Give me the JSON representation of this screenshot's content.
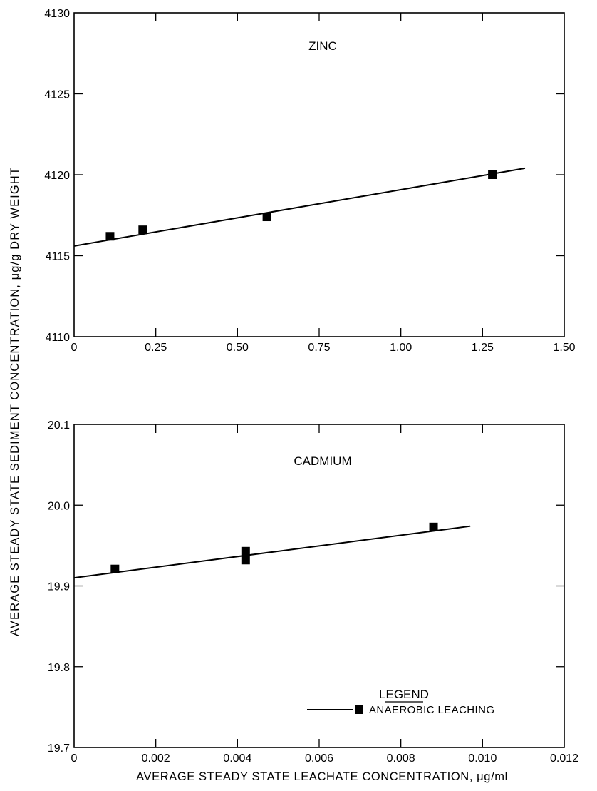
{
  "chart_data": [
    {
      "type": "scatter",
      "title": "ZINC",
      "x_ticks": [
        "0",
        "0.25",
        "0.50",
        "0.75",
        "1.00",
        "1.25",
        "1.50"
      ],
      "y_ticks": [
        "4110",
        "4115",
        "4120",
        "4125",
        "4130"
      ],
      "xlim": [
        0,
        1.5
      ],
      "ylim": [
        4110,
        4130
      ],
      "grid": false,
      "series": [
        {
          "points": [
            [
              0.11,
              4116.2
            ],
            [
              0.21,
              4116.6
            ],
            [
              0.59,
              4117.4
            ],
            [
              1.28,
              4120.0
            ]
          ]
        }
      ],
      "fit_line": {
        "x": [
          0,
          1.38
        ],
        "y": [
          4115.6,
          4120.4
        ]
      }
    },
    {
      "type": "scatter",
      "title": "CADMIUM",
      "x_ticks": [
        "0",
        "0.002",
        "0.004",
        "0.006",
        "0.008",
        "0.010",
        "0.012"
      ],
      "y_ticks": [
        "19.7",
        "19.8",
        "19.9",
        "20.0",
        "20.1"
      ],
      "xlim": [
        0,
        0.012
      ],
      "ylim": [
        19.7,
        20.1
      ],
      "grid": false,
      "legend_position": "bottom-right",
      "series": [
        {
          "name": "ANAEROBIC LEACHING",
          "points": [
            [
              0.001,
              19.921
            ],
            [
              0.0042,
              19.943
            ],
            [
              0.0042,
              19.932
            ],
            [
              0.0088,
              19.973
            ]
          ]
        }
      ],
      "fit_line": {
        "x": [
          0,
          0.0097
        ],
        "y": [
          19.91,
          19.974
        ]
      }
    }
  ],
  "labels": {
    "ylabel": "AVERAGE STEADY STATE SEDIMENT CONCENTRATION, μg/g DRY WEIGHT",
    "xlabel": "AVERAGE STEADY STATE LEACHATE CONCENTRATION, μg/ml",
    "legend_title": "LEGEND",
    "legend_entry": "ANAEROBIC LEACHING"
  },
  "colors": {
    "ink": "#000000",
    "background": "#ffffff"
  }
}
